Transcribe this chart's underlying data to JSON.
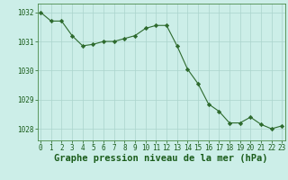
{
  "x": [
    0,
    1,
    2,
    3,
    4,
    5,
    6,
    7,
    8,
    9,
    10,
    11,
    12,
    13,
    14,
    15,
    16,
    17,
    18,
    19,
    20,
    21,
    22,
    23
  ],
  "y": [
    1032.0,
    1031.7,
    1031.7,
    1031.2,
    1030.85,
    1030.9,
    1031.0,
    1031.0,
    1031.1,
    1031.2,
    1031.45,
    1031.55,
    1031.55,
    1030.85,
    1030.05,
    1029.55,
    1028.85,
    1028.6,
    1028.2,
    1028.2,
    1028.4,
    1028.15,
    1028.0,
    1028.1
  ],
  "line_color": "#2d6a2d",
  "marker": "D",
  "marker_size": 2.2,
  "background_color": "#cceee8",
  "grid_color": "#aad4cc",
  "ylabel_ticks": [
    1028,
    1029,
    1030,
    1031,
    1032
  ],
  "xtick_labels": [
    "0",
    "1",
    "2",
    "3",
    "4",
    "5",
    "6",
    "7",
    "8",
    "9",
    "10",
    "11",
    "12",
    "13",
    "14",
    "15",
    "16",
    "17",
    "18",
    "19",
    "20",
    "21",
    "22",
    "23"
  ],
  "xlabel": "Graphe pression niveau de la mer (hPa)",
  "ylim": [
    1027.6,
    1032.3
  ],
  "xlim": [
    -0.3,
    23.3
  ],
  "tick_fontsize": 5.5,
  "xlabel_fontsize": 7.5,
  "tick_color": "#1a5c1a",
  "label_color": "#1a5c1a",
  "spine_color": "#4a8a4a"
}
